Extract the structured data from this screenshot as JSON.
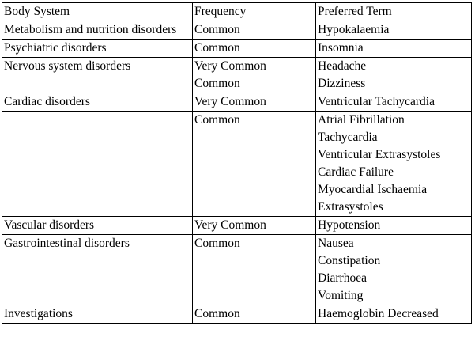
{
  "table": {
    "headers": [
      "Body System",
      "Frequency",
      "Preferred Term"
    ],
    "rows": [
      {
        "system": "Metabolism and nutrition disorders",
        "frequency": [
          "Common"
        ],
        "terms": [
          "Hypokalaemia"
        ]
      },
      {
        "system": "Psychiatric disorders",
        "frequency": [
          "Common"
        ],
        "terms": [
          "Insomnia"
        ]
      },
      {
        "system": "Nervous system disorders",
        "frequency": [
          "Very Common",
          "Common"
        ],
        "terms": [
          "Headache",
          "Dizziness"
        ]
      },
      {
        "system": "Cardiac disorders",
        "frequency": [
          "Very Common"
        ],
        "terms": [
          "Ventricular Tachycardia"
        ]
      },
      {
        "system": "",
        "frequency": [
          "Common"
        ],
        "terms": [
          "Atrial Fibrillation",
          "Tachycardia",
          "Ventricular Extrasystoles",
          "Cardiac Failure",
          "Myocardial Ischaemia",
          "Extrasystoles"
        ]
      },
      {
        "system": "Vascular disorders",
        "frequency": [
          "Very Common"
        ],
        "terms": [
          "Hypotension"
        ]
      },
      {
        "system": "Gastrointestinal disorders",
        "frequency": [
          "Common"
        ],
        "terms": [
          "Nausea",
          "Constipation",
          "Diarrhoea",
          "Vomiting"
        ]
      },
      {
        "system": "Investigations",
        "frequency": [
          "Common"
        ],
        "terms": [
          "Haemoglobin Decreased"
        ]
      }
    ]
  }
}
